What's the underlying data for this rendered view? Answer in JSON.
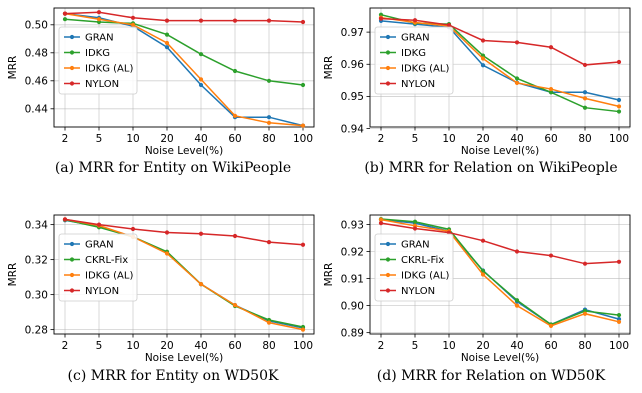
{
  "chart_data": [
    {
      "type": "line",
      "caption": "(a)  MRR for Entity on WikiPeople",
      "xlabel": "Noise Level(%)",
      "ylabel": "MRR",
      "categories": [
        "2",
        "5",
        "10",
        "20",
        "40",
        "60",
        "80",
        "100"
      ],
      "ylim": [
        0.427,
        0.512
      ],
      "yticks": [
        "0.44",
        "0.46",
        "0.48",
        "0.50"
      ],
      "legend_location": "bottom-left",
      "grid": true,
      "series": [
        {
          "name": "GRAN",
          "color": "#1f77b4",
          "values": [
            0.508,
            0.505,
            0.499,
            0.484,
            0.457,
            0.434,
            0.434,
            0.428
          ]
        },
        {
          "name": "IDKG",
          "color": "#2ca02c",
          "values": [
            0.504,
            0.502,
            0.501,
            0.493,
            0.479,
            0.467,
            0.46,
            0.457
          ]
        },
        {
          "name": "IDKG (AL)",
          "color": "#ff7f0e",
          "values": [
            0.508,
            0.504,
            0.5,
            0.487,
            0.461,
            0.435,
            0.43,
            0.428
          ]
        },
        {
          "name": "NYLON",
          "color": "#d62728",
          "values": [
            0.508,
            0.509,
            0.505,
            0.503,
            0.503,
            0.503,
            0.503,
            0.502
          ]
        }
      ]
    },
    {
      "type": "line",
      "caption": "(b)  MRR for Relation on WikiPeople",
      "xlabel": "Noise Level(%)",
      "ylabel": "MRR",
      "categories": [
        "2",
        "5",
        "10",
        "20",
        "40",
        "60",
        "80",
        "100"
      ],
      "ylim": [
        0.9405,
        0.9775
      ],
      "yticks": [
        "0.94",
        "0.95",
        "0.96",
        "0.97"
      ],
      "legend_location": "bottom-left",
      "grid": true,
      "series": [
        {
          "name": "GRAN",
          "color": "#1f77b4",
          "values": [
            0.9735,
            0.9725,
            0.9715,
            0.9597,
            0.9543,
            0.9513,
            0.9513,
            0.9489
          ]
        },
        {
          "name": "IDKG",
          "color": "#2ca02c",
          "values": [
            0.9754,
            0.9728,
            0.9725,
            0.9627,
            0.9556,
            0.9513,
            0.9465,
            0.9453
          ]
        },
        {
          "name": "IDKG (AL)",
          "color": "#ff7f0e",
          "values": [
            0.9745,
            0.973,
            0.9719,
            0.9618,
            0.9542,
            0.9523,
            0.9494,
            0.9469
          ]
        },
        {
          "name": "NYLON",
          "color": "#d62728",
          "values": [
            0.9742,
            0.9737,
            0.9722,
            0.9674,
            0.9668,
            0.9653,
            0.9598,
            0.9607
          ]
        }
      ]
    },
    {
      "type": "line",
      "caption": "(c)  MRR for Entity on WD50K",
      "xlabel": "Noise Level(%)",
      "ylabel": "MRR",
      "categories": [
        "2",
        "5",
        "10",
        "20",
        "40",
        "60",
        "80",
        "100"
      ],
      "ylim": [
        0.2775,
        0.3455
      ],
      "yticks": [
        "0.28",
        "0.30",
        "0.32",
        "0.34"
      ],
      "legend_location": "bottom-left",
      "grid": true,
      "series": [
        {
          "name": "GRAN",
          "color": "#1f77b4",
          "values": [
            0.3425,
            0.339,
            0.333,
            0.324,
            0.306,
            0.294,
            0.285,
            0.281
          ]
        },
        {
          "name": "CKRL-Fix",
          "color": "#2ca02c",
          "values": [
            0.3428,
            0.3385,
            0.333,
            0.3245,
            0.306,
            0.2935,
            0.2855,
            0.2815
          ]
        },
        {
          "name": "IDKG (AL)",
          "color": "#ff7f0e",
          "values": [
            0.343,
            0.3395,
            0.333,
            0.3235,
            0.306,
            0.294,
            0.284,
            0.28
          ]
        },
        {
          "name": "NYLON",
          "color": "#d62728",
          "values": [
            0.343,
            0.34,
            0.3375,
            0.3355,
            0.3348,
            0.3335,
            0.33,
            0.3285
          ]
        }
      ]
    },
    {
      "type": "line",
      "caption": "(d)  MRR for Relation on WD50K",
      "xlabel": "Noise Level(%)",
      "ylabel": "MRR",
      "categories": [
        "2",
        "5",
        "10",
        "20",
        "40",
        "60",
        "80",
        "100"
      ],
      "ylim": [
        0.8895,
        0.9335
      ],
      "yticks": [
        "0.89",
        "0.90",
        "0.91",
        "0.92",
        "0.93"
      ],
      "legend_location": "bottom-left",
      "grid": true,
      "series": [
        {
          "name": "GRAN",
          "color": "#1f77b4",
          "values": [
            0.9318,
            0.9305,
            0.9275,
            0.913,
            0.9015,
            0.893,
            0.8985,
            0.895
          ]
        },
        {
          "name": "CKRL-Fix",
          "color": "#2ca02c",
          "values": [
            0.932,
            0.931,
            0.9282,
            0.9128,
            0.902,
            0.893,
            0.898,
            0.8965
          ]
        },
        {
          "name": "IDKG (AL)",
          "color": "#ff7f0e",
          "values": [
            0.9318,
            0.9295,
            0.9275,
            0.9115,
            0.9,
            0.8925,
            0.897,
            0.894
          ]
        },
        {
          "name": "NYLON",
          "color": "#d62728",
          "values": [
            0.9305,
            0.9285,
            0.927,
            0.924,
            0.92,
            0.9185,
            0.9155,
            0.9162
          ]
        }
      ]
    }
  ]
}
